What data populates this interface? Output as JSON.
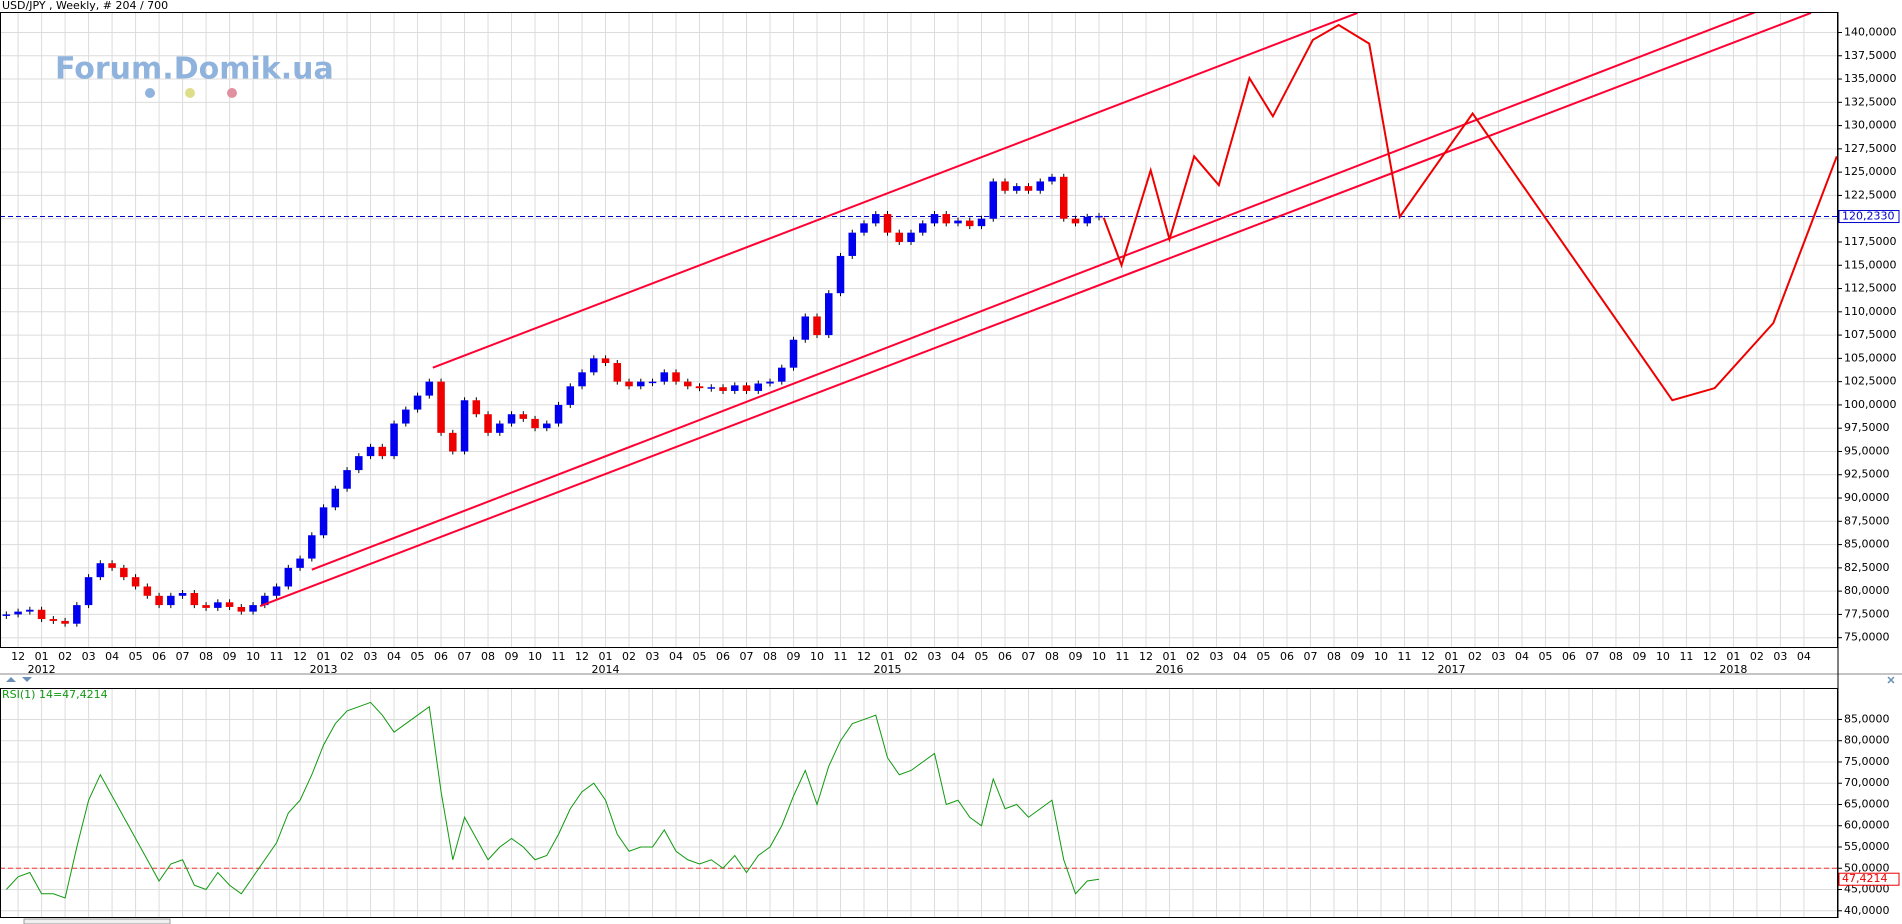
{
  "header": "USD/JPY , Weekly, # 204 / 700",
  "logo": "Forum.Domik.ua",
  "chart_data": [
    {
      "type": "candlestick",
      "categories": [
        "12",
        "01",
        "02",
        "03",
        "04",
        "05",
        "06",
        "07",
        "08",
        "09",
        "10",
        "11",
        "12",
        "01",
        "02",
        "03",
        "04",
        "05",
        "06",
        "07",
        "08",
        "09",
        "10",
        "11",
        "12",
        "01",
        "02",
        "03",
        "04",
        "05",
        "06",
        "07",
        "08",
        "09",
        "10",
        "11",
        "12",
        "01",
        "02",
        "03",
        "04",
        "05",
        "06",
        "07",
        "08",
        "09",
        "10",
        "11",
        "12",
        "01",
        "02",
        "03",
        "04",
        "05",
        "06",
        "07",
        "08",
        "09",
        "10",
        "11",
        "12",
        "01",
        "02",
        "03",
        "04",
        "05",
        "06",
        "07",
        "08",
        "09",
        "10",
        "11",
        "12",
        "01",
        "02",
        "03",
        "04"
      ],
      "year_labels": [
        {
          "value": 1,
          "label": "2012"
        },
        {
          "value": 13,
          "label": "2013"
        },
        {
          "value": 25,
          "label": "2014"
        },
        {
          "value": 37,
          "label": "2015"
        },
        {
          "value": 49,
          "label": "2016"
        },
        {
          "value": 61,
          "label": "2017"
        },
        {
          "value": 73,
          "label": "2018"
        }
      ],
      "xlim": [
        -0.77,
        77.45
      ],
      "ylim": [
        74,
        142.2
      ],
      "yticks": [
        {
          "value": 75,
          "label": "75,0000"
        },
        {
          "value": 77.5,
          "label": "77,5000"
        },
        {
          "value": 80,
          "label": "80,0000"
        },
        {
          "value": 82.5,
          "label": "82,5000"
        },
        {
          "value": 85,
          "label": "85,0000"
        },
        {
          "value": 87.5,
          "label": "87,5000"
        },
        {
          "value": 90,
          "label": "90,0000"
        },
        {
          "value": 92.5,
          "label": "92,5000"
        },
        {
          "value": 95,
          "label": "95,0000"
        },
        {
          "value": 97.5,
          "label": "97,5000"
        },
        {
          "value": 100,
          "label": "100,0000"
        },
        {
          "value": 102.5,
          "label": "102,5000"
        },
        {
          "value": 105,
          "label": "105,0000"
        },
        {
          "value": 107.5,
          "label": "107,5000"
        },
        {
          "value": 110,
          "label": "110,0000"
        },
        {
          "value": 112.5,
          "label": "112,5000"
        },
        {
          "value": 115,
          "label": "115,0000"
        },
        {
          "value": 117.5,
          "label": "117,5000"
        },
        {
          "value": 120,
          "label": "120,0000"
        },
        {
          "value": 122.5,
          "label": "122,5000"
        },
        {
          "value": 125,
          "label": "125,0000"
        },
        {
          "value": 127.5,
          "label": "127,5000"
        },
        {
          "value": 130,
          "label": "130,0000"
        },
        {
          "value": 132.5,
          "label": "132,5000"
        },
        {
          "value": 135,
          "label": "135,0000"
        },
        {
          "value": 137.5,
          "label": "137,5000"
        },
        {
          "value": 140,
          "label": "140,0000"
        }
      ],
      "grid": true,
      "x": [
        -0.5,
        0,
        0.5,
        1,
        1.5,
        2,
        2.5,
        3,
        3.5,
        4,
        4.5,
        5,
        5.5,
        6,
        6.5,
        7,
        7.5,
        8,
        8.5,
        9,
        9.5,
        10,
        10.5,
        11,
        11.5,
        12,
        12.5,
        13,
        13.5,
        14,
        14.5,
        15,
        15.5,
        16,
        16.5,
        17,
        17.5,
        18,
        18.5,
        19,
        19.5,
        20,
        20.5,
        21,
        21.5,
        22,
        22.5,
        23,
        23.5,
        24,
        24.5,
        25,
        25.5,
        26,
        26.5,
        27,
        27.5,
        28,
        28.5,
        29,
        29.5,
        30,
        30.5,
        31,
        31.5,
        32,
        32.5,
        33,
        33.5,
        34,
        34.5,
        35,
        35.5,
        36,
        36.5,
        37,
        37.5,
        38,
        38.5,
        39,
        39.5,
        40,
        40.5,
        41,
        41.5,
        42,
        42.5,
        43,
        43.5,
        44,
        44.5,
        45,
        45.5,
        46
      ],
      "close": [
        77.5,
        77.8,
        78,
        77,
        76.8,
        76.5,
        78.5,
        81.5,
        83,
        82.5,
        81.5,
        80.5,
        79.5,
        78.5,
        79.5,
        79.8,
        78.5,
        78.2,
        78.8,
        78.3,
        77.8,
        78.5,
        79.5,
        80.5,
        82.5,
        83.5,
        86,
        89,
        91,
        93,
        94.5,
        95.5,
        94.5,
        98,
        99.5,
        101,
        102.5,
        97,
        95,
        100.5,
        99,
        97,
        98,
        99,
        98.5,
        97.5,
        98,
        100,
        102,
        103.5,
        105,
        104.5,
        102.5,
        102,
        102.5,
        102.5,
        103.5,
        102.5,
        102,
        101.8,
        101.9,
        101.5,
        102.1,
        101.5,
        102.3,
        102.5,
        104,
        107,
        109.5,
        107.5,
        112,
        116,
        118.5,
        119.5,
        120.5,
        118.5,
        117.5,
        118.5,
        119.5,
        120.5,
        119.5,
        119.8,
        119.2,
        120,
        124,
        123,
        123.5,
        123,
        124,
        124.5,
        120,
        119.5,
        120.2,
        120.3
      ],
      "up_color": "#0000ee",
      "down_color": "#ee0000",
      "hline": {
        "value": 120.233,
        "label": "120,2330",
        "color": "#0000cc"
      },
      "trendlines": [
        {
          "color": "#ff0033",
          "x": [
            17.65,
            57
          ],
          "y": [
            104,
            142.1
          ]
        },
        {
          "color": "#ff0033",
          "x": [
            12.5,
            74.05
          ],
          "y": [
            82.3,
            142.3
          ]
        },
        {
          "color": "#ff0033",
          "x": [
            10.3,
            76.3
          ],
          "y": [
            78.4,
            142.1
          ]
        }
      ],
      "forecast": {
        "color": "#ee0000",
        "x": [
          46.2,
          46.96,
          48.2,
          49,
          50.05,
          51.1,
          52.4,
          53.4,
          55.1,
          56.2,
          57.5,
          58.8,
          61.9,
          70.4,
          72.2,
          74.7,
          77.4
        ],
        "y": [
          120.1,
          115,
          125.2,
          117.8,
          126.7,
          123.6,
          135.1,
          131,
          139.2,
          140.8,
          138.8,
          120.2,
          131.3,
          100.5,
          101.8,
          108.8,
          126.7
        ]
      }
    },
    {
      "type": "line",
      "title": "RSI(1) 14=47,4214",
      "color": "#119911",
      "xlim": [
        -0.77,
        77.45
      ],
      "ylim": [
        38.3,
        92.4
      ],
      "yticks": [
        {
          "value": 40,
          "label": "40,0000"
        },
        {
          "value": 45,
          "label": "45,0000"
        },
        {
          "value": 50,
          "label": "50,0000"
        },
        {
          "value": 55,
          "label": "55,0000"
        },
        {
          "value": 60,
          "label": "60,0000"
        },
        {
          "value": 65,
          "label": "65,0000"
        },
        {
          "value": 70,
          "label": "70,0000"
        },
        {
          "value": 75,
          "label": "75,0000"
        },
        {
          "value": 80,
          "label": "80,0000"
        },
        {
          "value": 85,
          "label": "85,0000"
        }
      ],
      "grid": true,
      "x": [
        -0.5,
        0,
        0.5,
        1,
        1.5,
        2,
        2.5,
        3,
        3.5,
        4,
        4.5,
        5,
        5.5,
        6,
        6.5,
        7,
        7.5,
        8,
        8.5,
        9,
        9.5,
        10,
        10.5,
        11,
        11.5,
        12,
        12.5,
        13,
        13.5,
        14,
        14.5,
        15,
        15.5,
        16,
        16.5,
        17,
        17.5,
        18,
        18.5,
        19,
        19.5,
        20,
        20.5,
        21,
        21.5,
        22,
        22.5,
        23,
        23.5,
        24,
        24.5,
        25,
        25.5,
        26,
        26.5,
        27,
        27.5,
        28,
        28.5,
        29,
        29.5,
        30,
        30.5,
        31,
        31.5,
        32,
        32.5,
        33,
        33.5,
        34,
        34.5,
        35,
        35.5,
        36,
        36.5,
        37,
        37.5,
        38,
        38.5,
        39,
        39.5,
        40,
        40.5,
        41,
        41.5,
        42,
        42.5,
        43,
        43.5,
        44,
        44.5,
        45,
        45.5,
        46
      ],
      "values": [
        45,
        48,
        49,
        44,
        44,
        43,
        55,
        66,
        72,
        67,
        62,
        57,
        52,
        47,
        51,
        52,
        46,
        45,
        49,
        46,
        44,
        48,
        52,
        56,
        63,
        66,
        72,
        79,
        84,
        87,
        88,
        89,
        86,
        82,
        84,
        86,
        88,
        68,
        52,
        62,
        57,
        52,
        55,
        57,
        55,
        52,
        53,
        58,
        64,
        68,
        70,
        66,
        58,
        54,
        55,
        55,
        59,
        54,
        52,
        51,
        52,
        50,
        53,
        49,
        53,
        55,
        60,
        67,
        73,
        65,
        74,
        80,
        84,
        85,
        86,
        76,
        72,
        73,
        75,
        77,
        65,
        66,
        62,
        60,
        71,
        64,
        65,
        62,
        64,
        66,
        52,
        44,
        47,
        47.4214
      ],
      "hline": {
        "value": 50,
        "color": "#ff3333"
      },
      "last": {
        "value": 47.4214,
        "label": "47,4214",
        "color": "#ee0000"
      }
    }
  ]
}
